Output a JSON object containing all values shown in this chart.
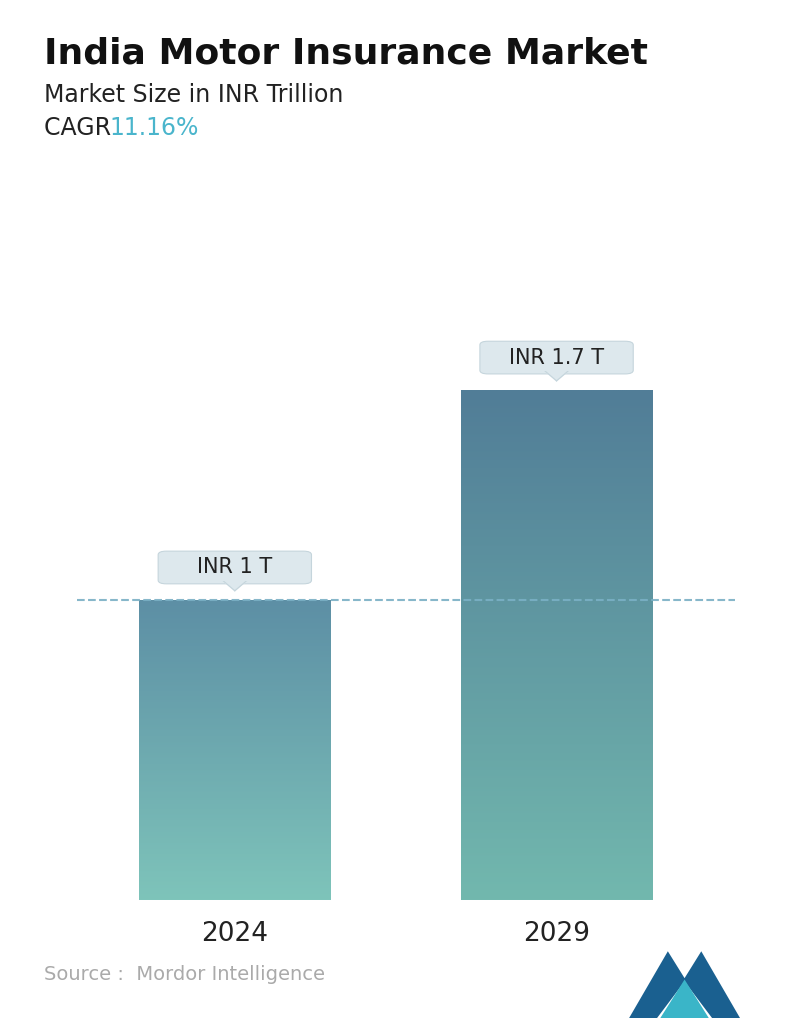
{
  "title": "India Motor Insurance Market",
  "subtitle": "Market Size in INR Trillion",
  "cagr_label": "CAGR ",
  "cagr_value": "11.16%",
  "cagr_color": "#4ab5cc",
  "categories": [
    "2024",
    "2029"
  ],
  "values": [
    1.0,
    1.7
  ],
  "bar_labels": [
    "INR 1 T",
    "INR 1.7 T"
  ],
  "bar1_top_color": "#5d8fa5",
  "bar1_bottom_color": "#7ec4ba",
  "bar2_top_color": "#517d97",
  "bar2_bottom_color": "#72b8ae",
  "dashed_line_color": "#7ab0c5",
  "dashed_line_y": 1.0,
  "source_text": "Source :  Mordor Intelligence",
  "source_color": "#aaaaaa",
  "background_color": "#ffffff",
  "ylim": [
    0,
    2.0
  ],
  "title_fontsize": 26,
  "subtitle_fontsize": 17,
  "cagr_fontsize": 17,
  "xlabel_fontsize": 19,
  "label_fontsize": 15,
  "source_fontsize": 14
}
